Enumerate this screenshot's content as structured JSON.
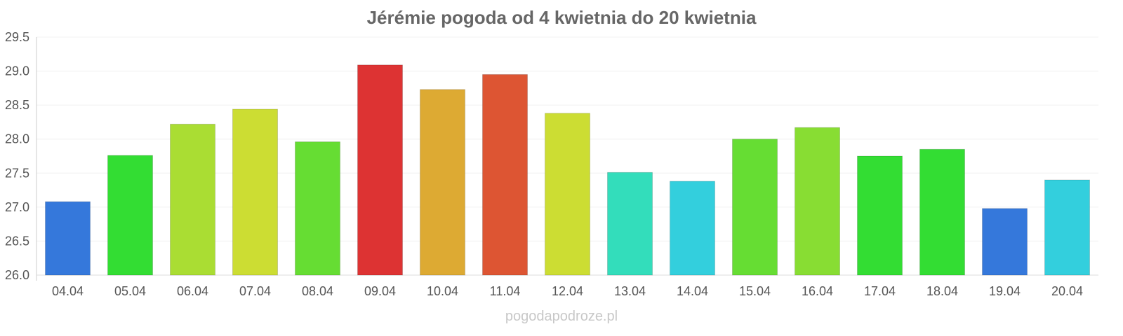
{
  "chart_data": {
    "type": "bar",
    "title": "Jérémie pogoda od 4 kwietnia do 20 kwietnia",
    "xlabel": "",
    "ylabel": "",
    "ylim": [
      26.0,
      29.5
    ],
    "yticks": [
      "26.0",
      "26.5",
      "27.0",
      "27.5",
      "28.0",
      "28.5",
      "29.0",
      "29.5"
    ],
    "grid": true,
    "categories": [
      "04.04",
      "05.04",
      "06.04",
      "07.04",
      "08.04",
      "09.04",
      "10.04",
      "11.04",
      "12.04",
      "13.04",
      "14.04",
      "15.04",
      "16.04",
      "17.04",
      "18.04",
      "19.04",
      "20.04"
    ],
    "values": [
      27.08,
      27.76,
      28.22,
      28.44,
      27.96,
      29.09,
      28.73,
      28.95,
      28.38,
      27.51,
      27.38,
      28.0,
      28.17,
      27.75,
      27.85,
      26.98,
      27.4
    ],
    "colors": [
      "#3578db",
      "#33dd33",
      "#aadd33",
      "#ccdd33",
      "#66dd33",
      "#dd3333",
      "#ddaa33",
      "#dd5533",
      "#ccdd33",
      "#33ddbb",
      "#33cfdd",
      "#66dd33",
      "#88dd33",
      "#33dd33",
      "#33dd33",
      "#3578db",
      "#33cfdd"
    ]
  },
  "credit": "pogodapodroze.pl"
}
